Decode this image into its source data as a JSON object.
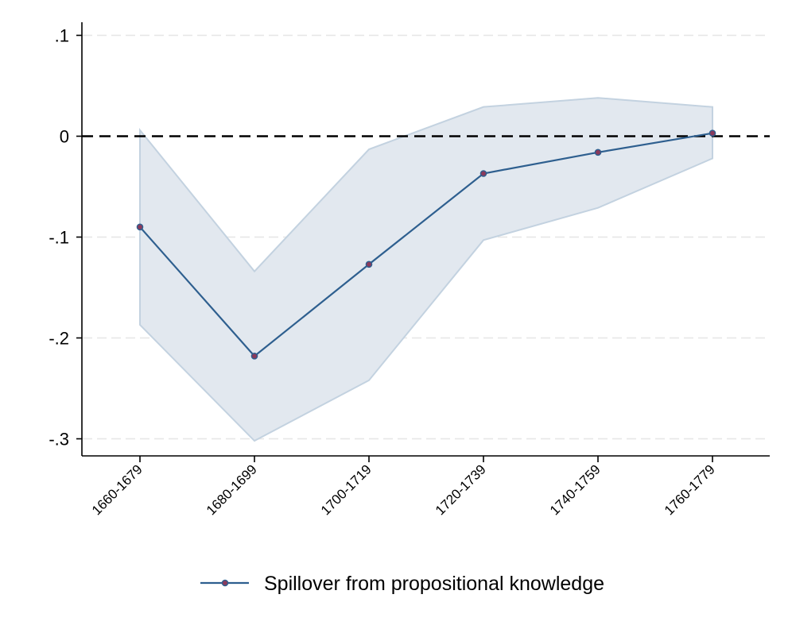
{
  "chart_data": {
    "type": "line",
    "title": "",
    "xlabel": "",
    "ylabel": "",
    "categories": [
      "1660-1679",
      "1680-1699",
      "1700-1719",
      "1720-1739",
      "1740-1759",
      "1760-1779"
    ],
    "yticks": [
      ".1",
      "0",
      "-.1",
      "-.2",
      "-.3"
    ],
    "ytick_values": [
      0.1,
      0.0,
      -0.1,
      -0.2,
      -0.3
    ],
    "ylim": [
      -0.32,
      0.122
    ],
    "grid": true,
    "reference_line": 0,
    "legend_position": "bottom",
    "series": [
      {
        "name": "Spillover from propositional knowledge",
        "values": [
          -0.09,
          -0.218,
          -0.127,
          -0.037,
          -0.016,
          0.003
        ],
        "ci_upper": [
          0.006,
          -0.134,
          -0.013,
          0.029,
          0.038,
          0.029
        ],
        "ci_lower": [
          -0.187,
          -0.302,
          -0.242,
          -0.103,
          -0.071,
          -0.022
        ]
      }
    ]
  },
  "colors": {
    "line": "#2e5f8f",
    "marker_fill": "#8a3a5c",
    "band_fill": "#e2e8ef",
    "band_edge": "#c3d2e0",
    "axis": "#000000",
    "grid": "#e6e6e6"
  }
}
